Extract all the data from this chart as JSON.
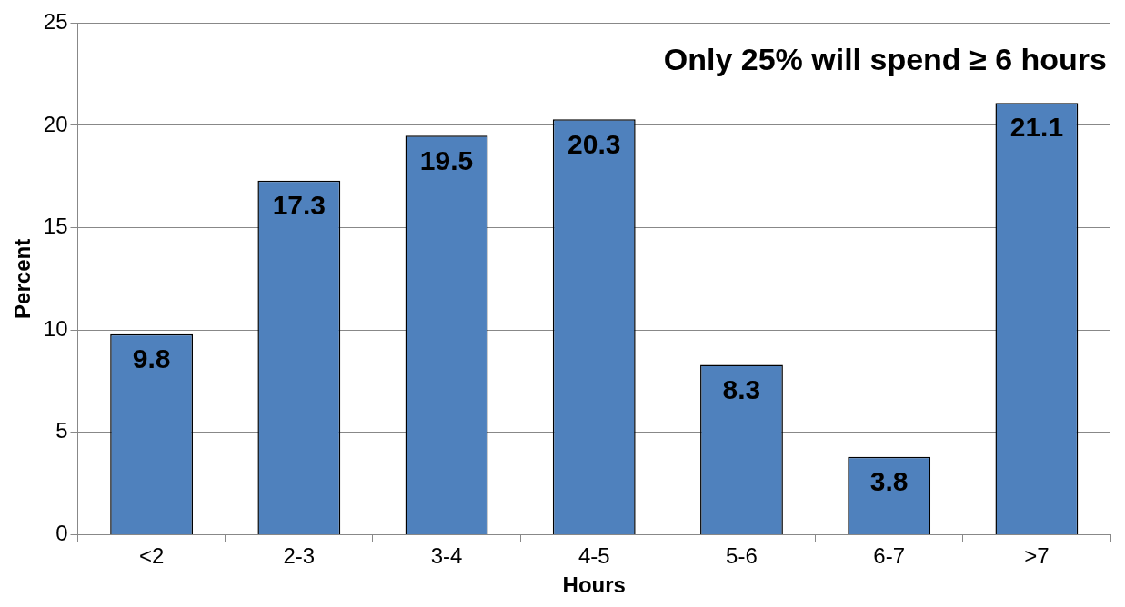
{
  "chart_data": {
    "type": "bar",
    "xlabel": "Hours",
    "ylabel": "Percent",
    "categories": [
      "<2",
      "2-3",
      "3-4",
      "4-5",
      "5-6",
      "6-7",
      ">7"
    ],
    "values": [
      9.8,
      17.3,
      19.5,
      20.3,
      8.3,
      3.8,
      21.1
    ],
    "color": "#4f81bd",
    "ylim": [
      0,
      25
    ],
    "yticks": [
      0,
      5,
      10,
      15,
      20,
      25
    ],
    "grid": "y",
    "legend": false,
    "data_labels": true,
    "annotations": [
      "Only 25% will spend ≥ 6 hours"
    ]
  }
}
